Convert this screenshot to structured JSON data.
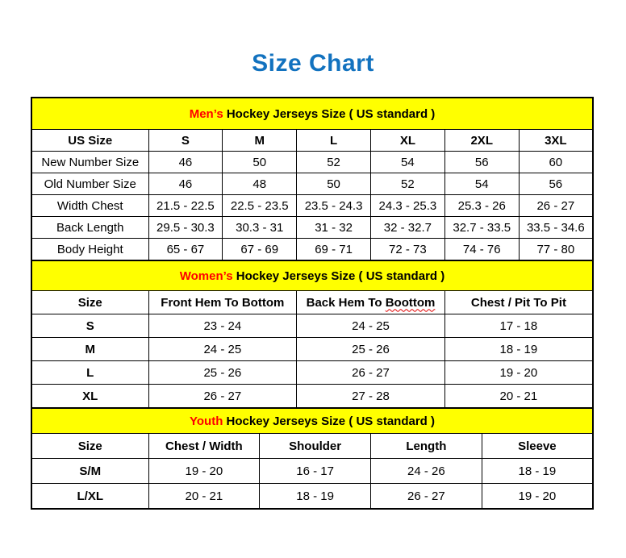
{
  "page_title": "Size Chart",
  "colors": {
    "title_blue": "#1272bf",
    "accent_red": "#ff0000",
    "band_yellow": "#ffff00",
    "border_black": "#000000",
    "squiggle_red": "#e00000"
  },
  "chart_data": [
    {
      "type": "table",
      "id": "mens",
      "section_title": {
        "accent": "Men’s",
        "rest": "Hockey Jerseys Size ( US standard )"
      },
      "bold_row_labels": false,
      "columns": [
        {
          "label": "US Size"
        },
        {
          "label": "S"
        },
        {
          "label": "M"
        },
        {
          "label": "L"
        },
        {
          "label": "XL"
        },
        {
          "label": "2XL"
        },
        {
          "label": "3XL"
        }
      ],
      "rows": [
        {
          "label": "New Number Size",
          "values": [
            "46",
            "50",
            "52",
            "54",
            "56",
            "60"
          ]
        },
        {
          "label": "Old Number Size",
          "values": [
            "46",
            "48",
            "50",
            "52",
            "54",
            "56"
          ]
        },
        {
          "label": "Width Chest",
          "values": [
            "21.5 - 22.5",
            "22.5 - 23.5",
            "23.5 - 24.3",
            "24.3 - 25.3",
            "25.3 - 26",
            "26 - 27"
          ]
        },
        {
          "label": "Back Length",
          "values": [
            "29.5 - 30.3",
            "30.3 - 31",
            "31 - 32",
            "32 - 32.7",
            "32.7 - 33.5",
            "33.5 - 34.6"
          ]
        },
        {
          "label": "Body Height",
          "values": [
            "65 - 67",
            "67 - 69",
            "69 - 71",
            "72 - 73",
            "74 - 76",
            "77 - 80"
          ]
        }
      ]
    },
    {
      "type": "table",
      "id": "womens",
      "section_title": {
        "accent": "Women’s",
        "rest": "Hockey Jerseys Size ( US standard )"
      },
      "bold_row_labels": true,
      "columns": [
        {
          "label": "Size"
        },
        {
          "label": "Front Hem To Bottom"
        },
        {
          "label": "Back Hem To Boottom",
          "wavy": "Boottom"
        },
        {
          "label": "Chest / Pit To Pit"
        }
      ],
      "rows": [
        {
          "label": "S",
          "values": [
            "23 - 24",
            "24 - 25",
            "17 - 18"
          ]
        },
        {
          "label": "M",
          "values": [
            "24 - 25",
            "25 - 26",
            "18 - 19"
          ]
        },
        {
          "label": "L",
          "values": [
            "25 - 26",
            "26 - 27",
            "19 - 20"
          ]
        },
        {
          "label": "XL",
          "values": [
            "26 - 27",
            "27 - 28",
            "20 - 21"
          ]
        }
      ]
    },
    {
      "type": "table",
      "id": "youth",
      "section_title": {
        "accent": "Youth",
        "rest": "Hockey Jerseys Size ( US standard )"
      },
      "bold_row_labels": true,
      "columns": [
        {
          "label": "Size"
        },
        {
          "label": "Chest / Width"
        },
        {
          "label": "Shoulder"
        },
        {
          "label": "Length"
        },
        {
          "label": "Sleeve"
        }
      ],
      "rows": [
        {
          "label": "S/M",
          "values": [
            "19 - 20",
            "16 - 17",
            "24 - 26",
            "18 - 19"
          ]
        },
        {
          "label": "L/XL",
          "values": [
            "20 - 21",
            "18 - 19",
            "26 - 27",
            "19 - 20"
          ]
        }
      ]
    }
  ]
}
